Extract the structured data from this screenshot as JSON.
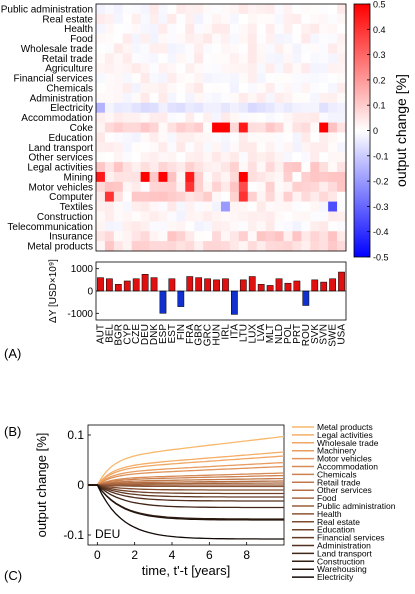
{
  "panels": {
    "a": "(A)",
    "b": "(B)",
    "c": "(C)"
  },
  "chart_data": [
    {
      "type": "heatmap",
      "rows": [
        "Public administration",
        "Real estate",
        "Health",
        "Food",
        "Wholesale trade",
        "Retail trade",
        "Agriculture",
        "Financial services",
        "Chemicals",
        "Administration",
        "Electricity",
        "Accommodation",
        "Coke",
        "Education",
        "Land transport",
        "Other services",
        "Legal activities",
        "Mining",
        "Motor vehicles",
        "Computer",
        "Textiles",
        "Construction",
        "Telecommunication",
        "Insurance",
        "Metal products"
      ],
      "columns": [
        "AUT",
        "BEL",
        "BGR",
        "CYP",
        "CZE",
        "DEU",
        "DNK",
        "ESP",
        "EST",
        "FIN",
        "FRA",
        "GBR",
        "GRC",
        "HUN",
        "IRL",
        "ITA",
        "LTU",
        "LUX",
        "LVA",
        "MLT",
        "NLD",
        "POL",
        "PRT",
        "ROU",
        "SVK",
        "SVN",
        "SWE",
        "USA"
      ],
      "colorbar": {
        "label": "output change [%]",
        "range": [
          -0.5,
          0.5
        ],
        "ticks": [
          "0.5",
          "0.4",
          "0.3",
          "0.2",
          "0.1",
          "0",
          "-0.1",
          "-0.2",
          "-0.3",
          "-0.4",
          "-0.5"
        ]
      },
      "strong_cells": [
        {
          "row": "Coke",
          "col": "IRL",
          "value": 0.5
        },
        {
          "row": "Coke",
          "col": "HUN",
          "value": 0.5
        },
        {
          "row": "Coke",
          "col": "LTU",
          "value": 0.45
        },
        {
          "row": "Coke",
          "col": "SVN",
          "value": 0.5
        },
        {
          "row": "Mining",
          "col": "AUT",
          "value": 0.45
        },
        {
          "row": "Mining",
          "col": "DEU",
          "value": 0.5
        },
        {
          "row": "Mining",
          "col": "ESP",
          "value": 0.5
        },
        {
          "row": "Mining",
          "col": "FRA",
          "value": 0.45
        },
        {
          "row": "Mining",
          "col": "LTU",
          "value": 0.5
        },
        {
          "row": "Motor vehicles",
          "col": "FRA",
          "value": 0.4
        },
        {
          "row": "Motor vehicles",
          "col": "LTU",
          "value": 0.35
        },
        {
          "row": "Computer",
          "col": "BEL",
          "value": 0.4
        },
        {
          "row": "Computer",
          "col": "LTU",
          "value": 0.4
        },
        {
          "row": "Textiles",
          "col": "IRL",
          "value": -0.2
        },
        {
          "row": "Textiles",
          "col": "SWE",
          "value": -0.35
        },
        {
          "row": "Electricity",
          "col": "AUT",
          "value": -0.15
        }
      ]
    },
    {
      "type": "bar",
      "ylabel": "ΔY [USD×10⁹]",
      "ylim": [
        -1300,
        1300
      ],
      "yticks": [
        1000,
        0,
        -1000
      ],
      "categories": [
        "AUT",
        "BEL",
        "BGR",
        "CYP",
        "CZE",
        "DEU",
        "DNK",
        "ESP",
        "EST",
        "FIN",
        "FRA",
        "GBR",
        "GRC",
        "HUN",
        "IRL",
        "ITA",
        "LTU",
        "LUX",
        "LVA",
        "MLT",
        "NLD",
        "POL",
        "PRT",
        "ROU",
        "SVK",
        "SVN",
        "SWE",
        "USA"
      ],
      "values": [
        600,
        550,
        300,
        450,
        550,
        750,
        600,
        -1000,
        550,
        -700,
        650,
        600,
        550,
        500,
        550,
        -1050,
        500,
        650,
        300,
        250,
        550,
        350,
        450,
        -650,
        500,
        400,
        550,
        850
      ],
      "colors": {
        "positive": "#e01010",
        "negative": "#1030d0"
      }
    },
    {
      "type": "line",
      "xlabel": "time, t'-t [years]",
      "ylabel": "output change [%]",
      "xlim": [
        -0.5,
        10
      ],
      "ylim": [
        -0.12,
        0.12
      ],
      "xticks": [
        0,
        2,
        4,
        6,
        8
      ],
      "yticks": [
        {
          "v": 0.1,
          "t": "0.1"
        },
        {
          "v": 0,
          "t": "0"
        },
        {
          "v": -0.1,
          "t": "-0.1"
        }
      ],
      "annotation": "DEU",
      "series": [
        {
          "name": "Metal products",
          "final": 0.097,
          "color": "#f7b86b"
        },
        {
          "name": "Legal activities",
          "final": 0.066,
          "color": "#f4ae68"
        },
        {
          "name": "Wholesale trade",
          "final": 0.058,
          "color": "#f0a665"
        },
        {
          "name": "Machinery",
          "final": 0.045,
          "color": "#e99c5f"
        },
        {
          "name": "Motor vehicles",
          "final": 0.037,
          "color": "#e0935a"
        },
        {
          "name": "Accommodation",
          "final": 0.024,
          "color": "#d78a55"
        },
        {
          "name": "Chemicals",
          "final": 0.019,
          "color": "#cc8150"
        },
        {
          "name": "Retail trade",
          "final": 0.013,
          "color": "#c1784a"
        },
        {
          "name": "Other services",
          "final": 0.008,
          "color": "#b56f45"
        },
        {
          "name": "Food",
          "final": 0.004,
          "color": "#a8663f"
        },
        {
          "name": "Public administration",
          "final": 0.0,
          "color": "#9a5d3a"
        },
        {
          "name": "Health",
          "final": -0.003,
          "color": "#8c5434"
        },
        {
          "name": "Real estate",
          "final": -0.01,
          "color": "#7e4b2e"
        },
        {
          "name": "Education",
          "final": -0.017,
          "color": "#704229"
        },
        {
          "name": "Financial services",
          "final": -0.024,
          "color": "#613923"
        },
        {
          "name": "Administration",
          "final": -0.032,
          "color": "#52301d"
        },
        {
          "name": "Land transport",
          "final": -0.045,
          "color": "#422718"
        },
        {
          "name": "Construction",
          "final": -0.068,
          "color": "#321d12"
        },
        {
          "name": "Warehousing",
          "final": -0.07,
          "color": "#22140c"
        },
        {
          "name": "Electricity",
          "final": -0.108,
          "color": "#120a06"
        }
      ]
    }
  ]
}
